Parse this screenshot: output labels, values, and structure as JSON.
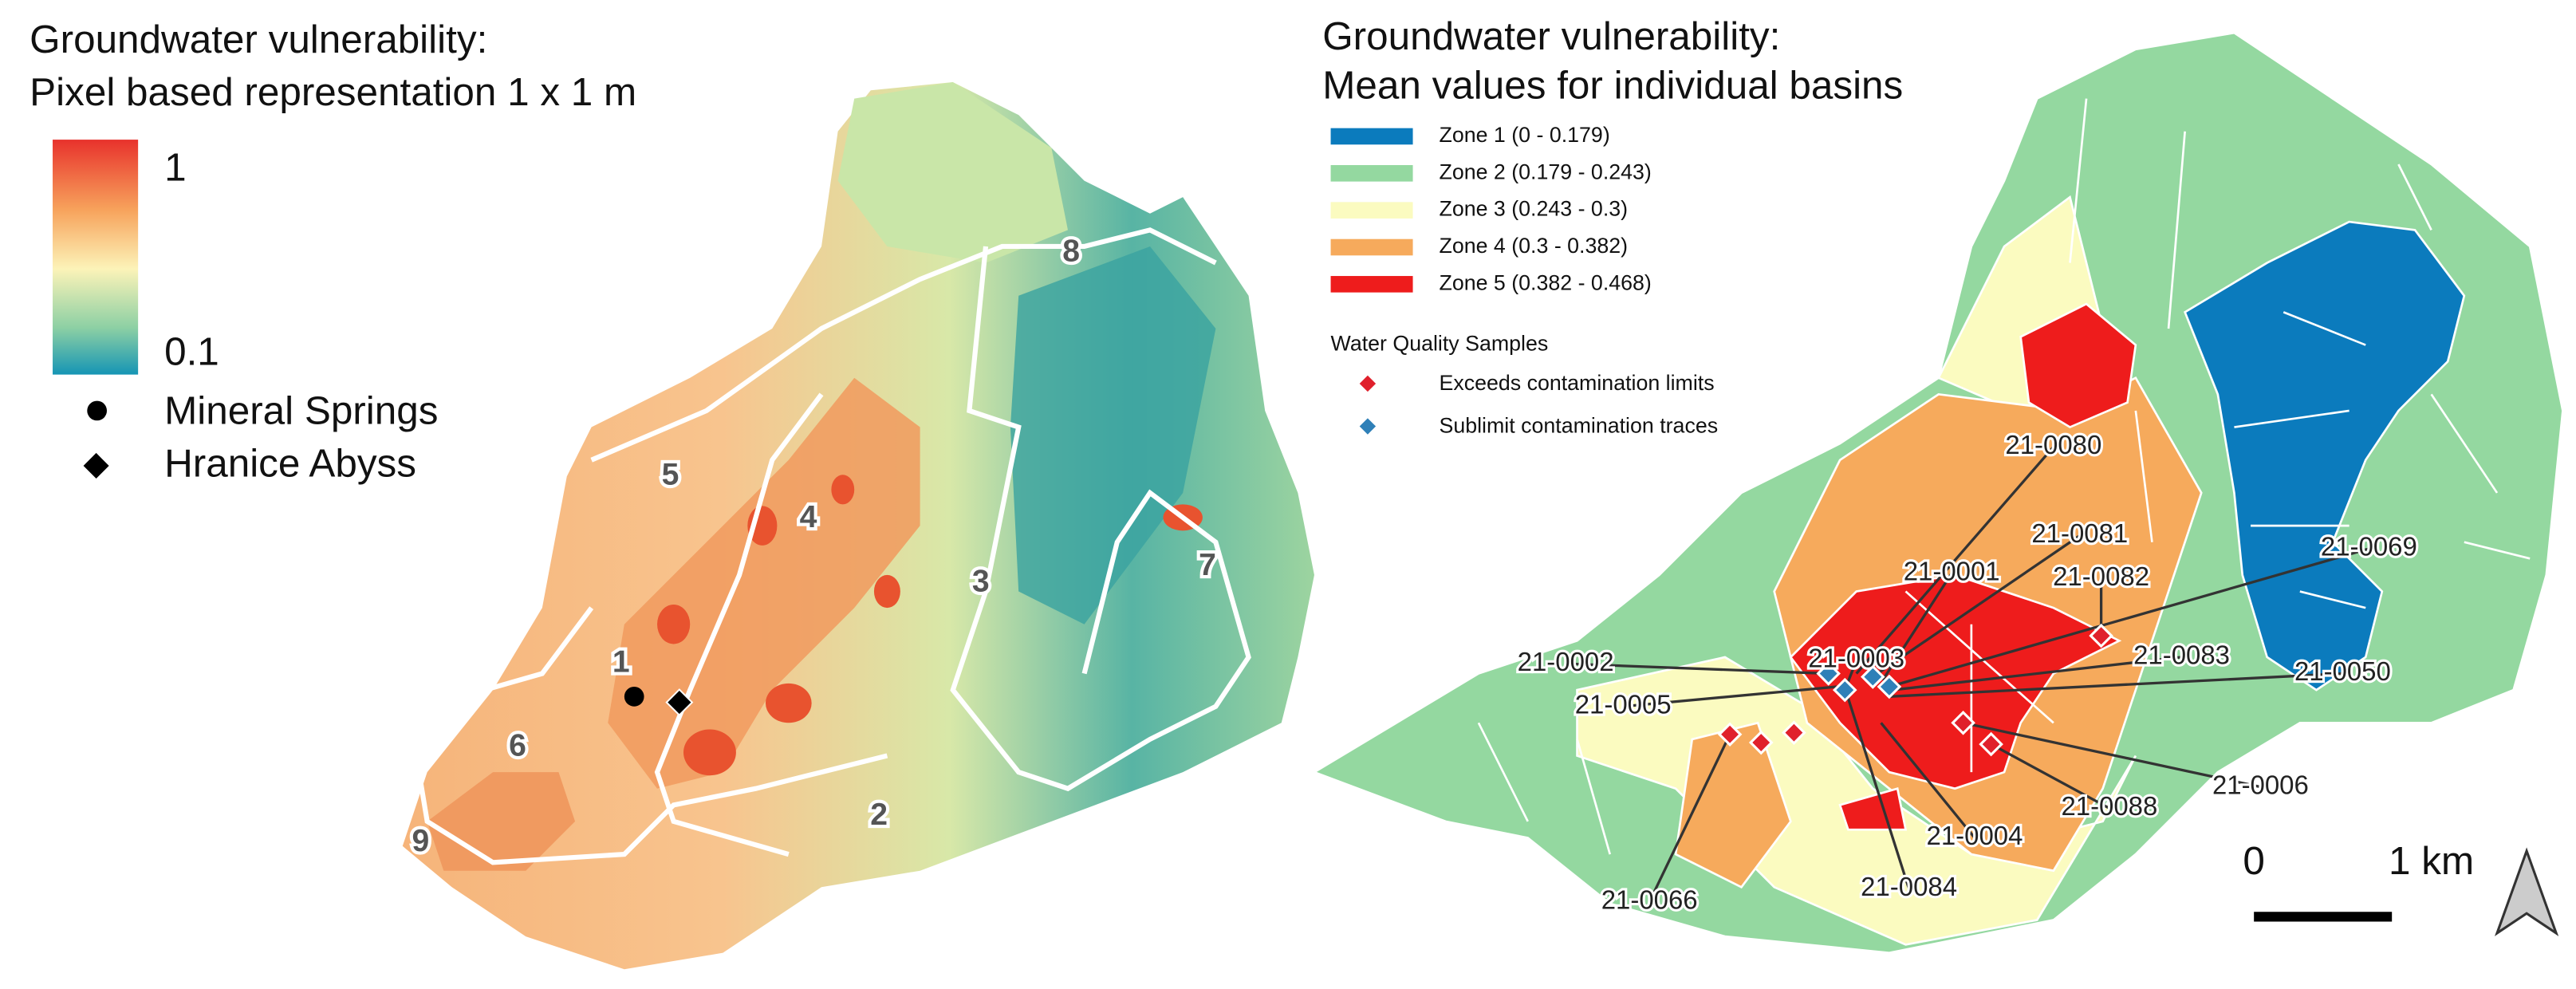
{
  "left_panel": {
    "title": [
      "Groundwater vulnerability:",
      "Pixel based representation 1 x 1 m"
    ],
    "colorbar": {
      "max": "1",
      "min": "0.1"
    },
    "legend": [
      "Mineral Springs",
      "Hranice Abyss"
    ],
    "zones": [
      "1",
      "2",
      "3",
      "4",
      "5",
      "6",
      "7",
      "8",
      "9"
    ]
  },
  "right_panel": {
    "title": [
      "Groundwater vulnerability:",
      "Mean values for individual basins"
    ],
    "zones": [
      {
        "label": "Zone 1 (0 - 0.179)",
        "color": "#0b7bbd"
      },
      {
        "label": "Zone 2 (0.179 - 0.243)",
        "color": "#94d8a0"
      },
      {
        "label": "Zone 3 (0.243 - 0.3)",
        "color": "#fbfbc0"
      },
      {
        "label": "Zone 4 (0.3 - 0.382)",
        "color": "#f6aa5c"
      },
      {
        "label": "Zone 5 (0.382 - 0.468)",
        "color": "#ee1c1c"
      }
    ],
    "samples_title": "Water Quality Samples",
    "sample_legend": [
      {
        "label": "Exceeds contamination limits",
        "color": "#e0202c"
      },
      {
        "label": "Sublimit contamination traces",
        "color": "#2f80b8"
      }
    ],
    "samples": [
      "21-0080",
      "21-0081",
      "21-0001",
      "21-0082",
      "21-0069",
      "21-0002",
      "21-0003",
      "21-0083",
      "21-0050",
      "21-0005",
      "21-0006",
      "21-0088",
      "21-0004",
      "21-0066",
      "21-0084"
    ],
    "scale_bar": [
      "0",
      "1 km"
    ]
  }
}
